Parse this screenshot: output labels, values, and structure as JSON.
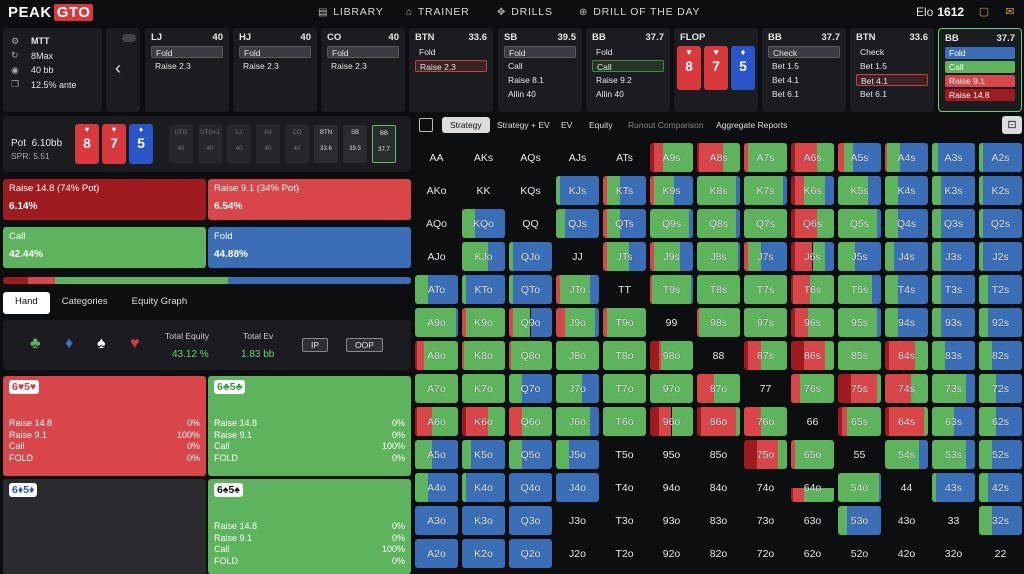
{
  "brand": {
    "peak": "PEAK",
    "gto": "GTO"
  },
  "nav": [
    {
      "icon": "▤",
      "label": "LIBRARY"
    },
    {
      "icon": "⌂",
      "label": "TRAINER"
    },
    {
      "icon": "✥",
      "label": "DRILLS"
    },
    {
      "icon": "⊕",
      "label": "DRILL OF THE DAY"
    }
  ],
  "elo": {
    "label": "Elo",
    "value": "1612"
  },
  "settings": {
    "format": "MTT",
    "players": "8Max",
    "stack": "40 bb",
    "ante": "12.5% ante"
  },
  "seats": [
    {
      "pos": "LJ",
      "stack": "40",
      "actions": [
        "Fold",
        "Raise 2.3"
      ],
      "sel": 0
    },
    {
      "pos": "HJ",
      "stack": "40",
      "actions": [
        "Fold",
        "Raise 2.3"
      ],
      "sel": 0
    },
    {
      "pos": "CO",
      "stack": "40",
      "actions": [
        "Fold",
        "Raise 2.3"
      ],
      "sel": 0
    },
    {
      "pos": "BTN",
      "stack": "33.6",
      "actions": [
        "Fold",
        "Raise 2.3"
      ],
      "sel": 1,
      "selcolor": "r"
    },
    {
      "pos": "SB",
      "stack": "39.5",
      "actions": [
        "Fold",
        "Call",
        "Raise 8.1",
        "Allin 40"
      ],
      "sel": 0
    },
    {
      "pos": "BB",
      "stack": "37.7",
      "actions": [
        "Fold",
        "Call",
        "Raise 9.2",
        "Allin 40"
      ],
      "sel": 1,
      "selcolor": "g"
    },
    {
      "pos": "BB",
      "stack": "37.7",
      "actions": [
        "Check",
        "Bet 1.5",
        "Bet 4.1",
        "Bet 6.1"
      ],
      "sel": 0
    },
    {
      "pos": "BTN",
      "stack": "33.6",
      "actions": [
        "Check",
        "Bet 1.5",
        "Bet 4.1",
        "Bet 6.1"
      ],
      "sel": 2,
      "selcolor": "r"
    },
    {
      "pos": "BB",
      "stack": "37.7",
      "actions": [
        "Fold",
        "Call",
        "Raise 9.1",
        "Raise 14.8"
      ],
      "active": true
    }
  ],
  "flop": {
    "label": "FLOP",
    "cards": [
      {
        "rank": "8",
        "suit": "♥",
        "color": "#d9383d"
      },
      {
        "rank": "7",
        "suit": "♥",
        "color": "#d9383d"
      },
      {
        "rank": "5",
        "suit": "♦",
        "color": "#2a56c9"
      }
    ]
  },
  "pot": {
    "label": "Pot",
    "value": "6.10bb",
    "spr": "SPR: 5.51"
  },
  "positions": [
    {
      "name": "UTG",
      "stack": "40"
    },
    {
      "name": "UTG+1",
      "stack": "40"
    },
    {
      "name": "LJ",
      "stack": "40"
    },
    {
      "name": "HJ",
      "stack": "40"
    },
    {
      "name": "CO",
      "stack": "40"
    },
    {
      "name": "BTN",
      "stack": "33.6"
    },
    {
      "name": "SB",
      "stack": "39.5"
    },
    {
      "name": "BB",
      "stack": "37.7"
    }
  ],
  "strategy": [
    {
      "label": "Raise 14.8 (74% Pot)",
      "value": "6.14%",
      "color": "#9e1c1f"
    },
    {
      "label": "Raise 9.1 (34% Pot)",
      "value": "6.54%",
      "color": "#d9464a"
    },
    {
      "label": "Call",
      "value": "42.44%",
      "color": "#5db45d"
    },
    {
      "label": "Fold",
      "value": "44.88%",
      "color": "#3a6fb8"
    }
  ],
  "subtabs": [
    "Hand",
    "Categories",
    "Equity Graph"
  ],
  "equity": {
    "total_equity_label": "Total Equity",
    "total_equity": "43.12 %",
    "total_ev_label": "Total Ev",
    "total_ev": "1.83 bb",
    "ip": "IP",
    "oop": "OOP"
  },
  "combos": [
    {
      "hand": "6♥5♥",
      "rows": [
        [
          "Raise 14.8",
          "0%"
        ],
        [
          "Raise 9.1",
          "100%"
        ],
        [
          "Call",
          "0%"
        ],
        [
          "FOLD",
          "0%"
        ]
      ]
    },
    {
      "hand": "6♣5♣",
      "rows": [
        [
          "Raise 14.8",
          "0%"
        ],
        [
          "Raise 9.1",
          "0%"
        ],
        [
          "Call",
          "100%"
        ],
        [
          "FOLD",
          "0%"
        ]
      ]
    },
    {
      "hand": "6♦5♦",
      "rows": []
    },
    {
      "hand": "6♠5♠",
      "rows": [
        [
          "Raise 14.8",
          "0%"
        ],
        [
          "Raise 9.1",
          "0%"
        ],
        [
          "Call",
          "100%"
        ],
        [
          "FOLD",
          "0%"
        ]
      ]
    }
  ],
  "toolbar": [
    "Strategy",
    "Strategy + EV",
    "EV",
    "Equity",
    "Runout Comparison",
    "Aggregate Reports"
  ],
  "colors": {
    "raise_big": "#9e1c1f",
    "raise": "#d9464a",
    "call": "#5db45d",
    "fold": "#3a6fb8",
    "empty": "#0d0e10"
  }
}
